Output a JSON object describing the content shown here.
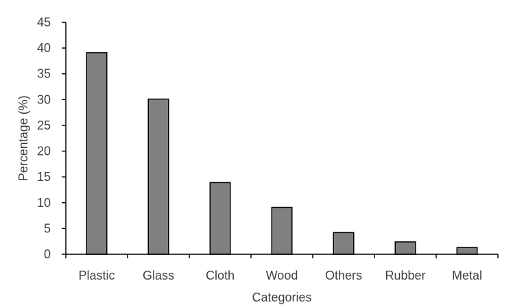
{
  "chart_data": {
    "type": "bar",
    "title": "",
    "xlabel": "Categories",
    "ylabel": "Percentage (%)",
    "categories": [
      "Plastic",
      "Glass",
      "Cloth",
      "Wood",
      "Others",
      "Rubber",
      "Metal"
    ],
    "values": [
      39.1,
      30.1,
      13.9,
      9.1,
      4.2,
      2.4,
      1.3
    ],
    "ylim": [
      0,
      45
    ],
    "yticks": [
      0,
      5,
      10,
      15,
      20,
      25,
      30,
      35,
      40,
      45
    ],
    "ytick_labels": [
      "0",
      "5",
      "10",
      "15",
      "20",
      "25",
      "30",
      "35",
      "40",
      "45"
    ],
    "grid": false,
    "legend": "none",
    "colors": {
      "bar_fill": "#808080",
      "bar_stroke": "#000000",
      "axis": "#000000",
      "text": "#404040"
    }
  }
}
